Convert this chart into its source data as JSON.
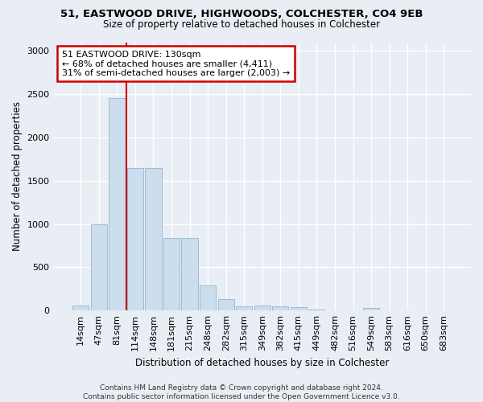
{
  "title1": "51, EASTWOOD DRIVE, HIGHWOODS, COLCHESTER, CO4 9EB",
  "title2": "Size of property relative to detached houses in Colchester",
  "xlabel": "Distribution of detached houses by size in Colchester",
  "ylabel": "Number of detached properties",
  "bin_labels": [
    "14sqm",
    "47sqm",
    "81sqm",
    "114sqm",
    "148sqm",
    "181sqm",
    "215sqm",
    "248sqm",
    "282sqm",
    "315sqm",
    "349sqm",
    "382sqm",
    "415sqm",
    "449sqm",
    "482sqm",
    "516sqm",
    "549sqm",
    "583sqm",
    "616sqm",
    "650sqm",
    "683sqm"
  ],
  "bar_values": [
    60,
    1000,
    2450,
    1650,
    1650,
    840,
    840,
    290,
    135,
    50,
    55,
    50,
    35,
    10,
    0,
    0,
    25,
    0,
    0,
    0,
    0
  ],
  "bar_color": "#ccdded",
  "bar_edgecolor": "#9abdd4",
  "vline_color": "#cc0000",
  "annotation_line1": "51 EASTWOOD DRIVE: 130sqm",
  "annotation_line2": "← 68% of detached houses are smaller (4,411)",
  "annotation_line3": "31% of semi-detached houses are larger (2,003) →",
  "annotation_box_edgecolor": "#cc0000",
  "annotation_box_facecolor": "#ffffff",
  "ylim": [
    0,
    3100
  ],
  "yticks": [
    0,
    500,
    1000,
    1500,
    2000,
    2500,
    3000
  ],
  "footer": "Contains HM Land Registry data © Crown copyright and database right 2024.\nContains public sector information licensed under the Open Government Licence v3.0.",
  "bg_color": "#e8eef4",
  "plot_bg_color": "#e8eef4"
}
